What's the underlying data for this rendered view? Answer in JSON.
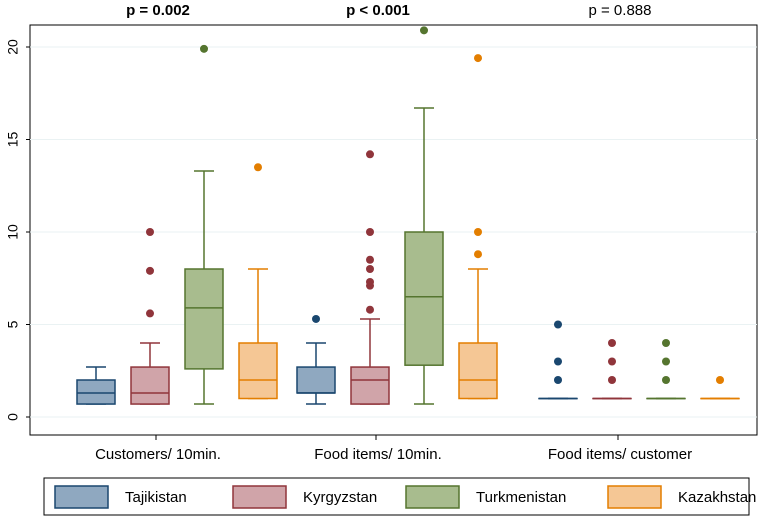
{
  "chart_data": {
    "type": "boxplot",
    "title": "",
    "xlabel": "",
    "ylabel": "",
    "ylim": [
      0,
      21
    ],
    "yticks": [
      0,
      5,
      10,
      15,
      20
    ],
    "grid": true,
    "legend_position": "bottom",
    "colors": {
      "Tajikistan": {
        "fill": "#8fa8c0",
        "stroke": "#1a476f"
      },
      "Kyrgyzstan": {
        "fill": "#d0a4a9",
        "stroke": "#90353b"
      },
      "Turkmenistan": {
        "fill": "#a8bc8e",
        "stroke": "#55752f"
      },
      "Kazakhstan": {
        "fill": "#f5c795",
        "stroke": "#e37e00"
      }
    },
    "series_names": [
      "Tajikistan",
      "Kyrgyzstan",
      "Turkmenistan",
      "Kazakhstan"
    ],
    "groups": [
      {
        "label": "Customers/ 10min.",
        "pvalue": "p = 0.002",
        "pvalue_bold": true,
        "boxes": [
          {
            "series": "Tajikistan",
            "whisker_low": 0.7,
            "q1": 0.7,
            "median": 1.3,
            "q3": 2.0,
            "whisker_high": 2.7,
            "outliers": []
          },
          {
            "series": "Kyrgyzstan",
            "whisker_low": 0.7,
            "q1": 0.7,
            "median": 1.3,
            "q3": 2.7,
            "whisker_high": 4.0,
            "outliers": [
              5.6,
              7.9,
              10.0
            ]
          },
          {
            "series": "Turkmenistan",
            "whisker_low": 0.7,
            "q1": 2.6,
            "median": 5.9,
            "q3": 8.0,
            "whisker_high": 13.3,
            "outliers": [
              19.9
            ]
          },
          {
            "series": "Kazakhstan",
            "whisker_low": 1.0,
            "q1": 1.0,
            "median": 2.0,
            "q3": 4.0,
            "whisker_high": 8.0,
            "outliers": [
              13.5
            ]
          }
        ]
      },
      {
        "label": "Food items/ 10min.",
        "pvalue": "p < 0.001",
        "pvalue_bold": true,
        "boxes": [
          {
            "series": "Tajikistan",
            "whisker_low": 0.7,
            "q1": 1.3,
            "median": 1.3,
            "q3": 2.7,
            "whisker_high": 4.0,
            "outliers": [
              5.3
            ]
          },
          {
            "series": "Kyrgyzstan",
            "whisker_low": 0.7,
            "q1": 0.7,
            "median": 2.0,
            "q3": 2.7,
            "whisker_high": 5.3,
            "outliers": [
              5.8,
              7.1,
              7.3,
              8.0,
              8.5,
              10.0,
              14.2
            ]
          },
          {
            "series": "Turkmenistan",
            "whisker_low": 0.7,
            "q1": 2.8,
            "median": 6.5,
            "q3": 10.0,
            "whisker_high": 16.7,
            "outliers": [
              20.9
            ]
          },
          {
            "series": "Kazakhstan",
            "whisker_low": 1.0,
            "q1": 1.0,
            "median": 2.0,
            "q3": 4.0,
            "whisker_high": 8.0,
            "outliers": [
              8.8,
              10.0,
              19.4
            ]
          }
        ]
      },
      {
        "label": "Food items/ customer",
        "pvalue": "p = 0.888",
        "pvalue_bold": false,
        "boxes": [
          {
            "series": "Tajikistan",
            "whisker_low": 1.0,
            "q1": 1.0,
            "median": 1.0,
            "q3": 1.0,
            "whisker_high": 1.0,
            "outliers": [
              2.0,
              3.0,
              5.0
            ]
          },
          {
            "series": "Kyrgyzstan",
            "whisker_low": 1.0,
            "q1": 1.0,
            "median": 1.0,
            "q3": 1.0,
            "whisker_high": 1.0,
            "outliers": [
              2.0,
              3.0,
              4.0
            ]
          },
          {
            "series": "Turkmenistan",
            "whisker_low": 1.0,
            "q1": 1.0,
            "median": 1.0,
            "q3": 1.0,
            "whisker_high": 1.0,
            "outliers": [
              2.0,
              3.0,
              4.0
            ]
          },
          {
            "series": "Kazakhstan",
            "whisker_low": 1.0,
            "q1": 1.0,
            "median": 1.0,
            "q3": 1.0,
            "whisker_high": 1.0,
            "outliers": [
              2.0
            ]
          }
        ]
      }
    ]
  }
}
